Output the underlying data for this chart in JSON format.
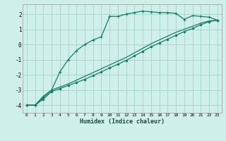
{
  "xlabel": "Humidex (Indice chaleur)",
  "bg_color": "#cff0ea",
  "grid_color": "#aad6ce",
  "line_color": "#1a7a6a",
  "xlim": [
    -0.5,
    23.5
  ],
  "ylim": [
    -4.5,
    2.65
  ],
  "xticks": [
    0,
    1,
    2,
    3,
    4,
    5,
    6,
    7,
    8,
    9,
    10,
    11,
    12,
    13,
    14,
    15,
    16,
    17,
    18,
    19,
    20,
    21,
    22,
    23
  ],
  "yticks": [
    -4,
    -3,
    -2,
    -1,
    0,
    1,
    2
  ],
  "curve1_x": [
    0,
    1,
    2,
    3,
    4,
    5,
    6,
    7,
    8,
    9,
    10,
    11,
    12,
    13,
    14,
    15,
    16,
    17,
    18,
    19,
    20,
    21,
    22,
    23
  ],
  "curve1_y": [
    -4.0,
    -4.0,
    -3.5,
    -3.0,
    -1.8,
    -1.0,
    -0.4,
    0.0,
    0.3,
    0.5,
    1.85,
    1.85,
    2.0,
    2.1,
    2.2,
    2.15,
    2.1,
    2.1,
    2.05,
    1.65,
    1.9,
    1.85,
    1.8,
    1.6
  ],
  "curve2_x": [
    0,
    1,
    2,
    3,
    4,
    5,
    6,
    7,
    8,
    9,
    10,
    11,
    12,
    13,
    14,
    15,
    16,
    17,
    18,
    19,
    20,
    21,
    22,
    23
  ],
  "curve2_y": [
    -4.0,
    -4.0,
    -3.4,
    -3.0,
    -2.8,
    -2.6,
    -2.35,
    -2.1,
    -1.85,
    -1.6,
    -1.35,
    -1.1,
    -0.85,
    -0.55,
    -0.25,
    0.05,
    0.3,
    0.55,
    0.8,
    1.0,
    1.2,
    1.4,
    1.55,
    1.6
  ],
  "curve3_x": [
    0,
    1,
    2,
    3,
    4,
    5,
    6,
    7,
    8,
    9,
    10,
    11,
    12,
    13,
    14,
    15,
    16,
    17,
    18,
    19,
    20,
    21,
    22,
    23
  ],
  "curve3_y": [
    -4.0,
    -4.0,
    -3.6,
    -3.1,
    -2.9,
    -2.7,
    -2.5,
    -2.3,
    -2.05,
    -1.8,
    -1.55,
    -1.3,
    -1.05,
    -0.75,
    -0.45,
    -0.15,
    0.1,
    0.35,
    0.6,
    0.85,
    1.05,
    1.3,
    1.5,
    1.6
  ]
}
